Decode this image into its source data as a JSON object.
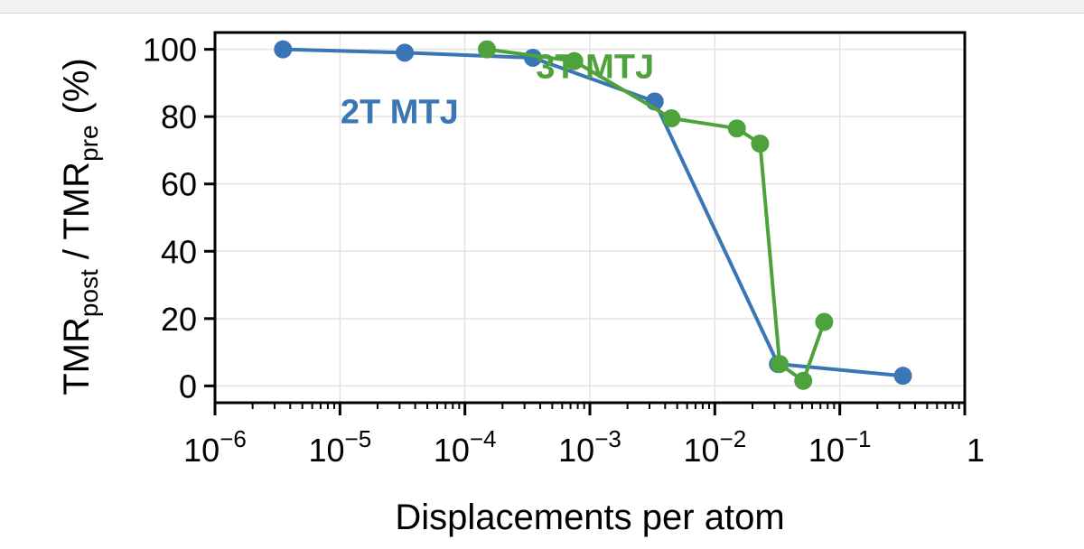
{
  "chart_data": {
    "type": "line",
    "xlabel": "Displacements per atom",
    "ylabel_main": "TMR",
    "ylabel_sub1": "post",
    "ylabel_mid": " / TMR",
    "ylabel_sub2": "pre",
    "ylabel_unit": "(%)",
    "xscale": "log",
    "xlim": [
      1e-06,
      1
    ],
    "ylim": [
      -5,
      105
    ],
    "grid": true,
    "x_ticks": [
      {
        "exp": "-6",
        "value": 1e-06
      },
      {
        "exp": "-5",
        "value": 1e-05
      },
      {
        "exp": "-4",
        "value": 0.0001
      },
      {
        "exp": "-3",
        "value": 0.001
      },
      {
        "exp": "-2",
        "value": 0.01
      },
      {
        "exp": "-1",
        "value": 0.1
      }
    ],
    "x_tick_last": {
      "label": "1",
      "value": 1
    },
    "y_ticks": [
      0,
      20,
      40,
      60,
      80,
      100
    ],
    "series": [
      {
        "name": "2T MTJ",
        "color": "#3a75b5",
        "label_pos": {
          "x": 3e-05,
          "y": 78
        },
        "x": [
          3.5e-06,
          3.3e-05,
          0.00035,
          0.0033,
          0.032,
          0.32
        ],
        "y": [
          100,
          99,
          97.5,
          84.5,
          6.5,
          3
        ]
      },
      {
        "name": "3T MTJ",
        "color": "#4ea23c",
        "label_pos": {
          "x": 0.0011,
          "y": 91.5
        },
        "x": [
          0.00015,
          0.00075,
          0.0045,
          0.015,
          0.023,
          0.033,
          0.051,
          0.075
        ],
        "y": [
          100,
          96.5,
          79.5,
          76.5,
          72,
          6.5,
          1.5,
          19
        ]
      }
    ]
  }
}
